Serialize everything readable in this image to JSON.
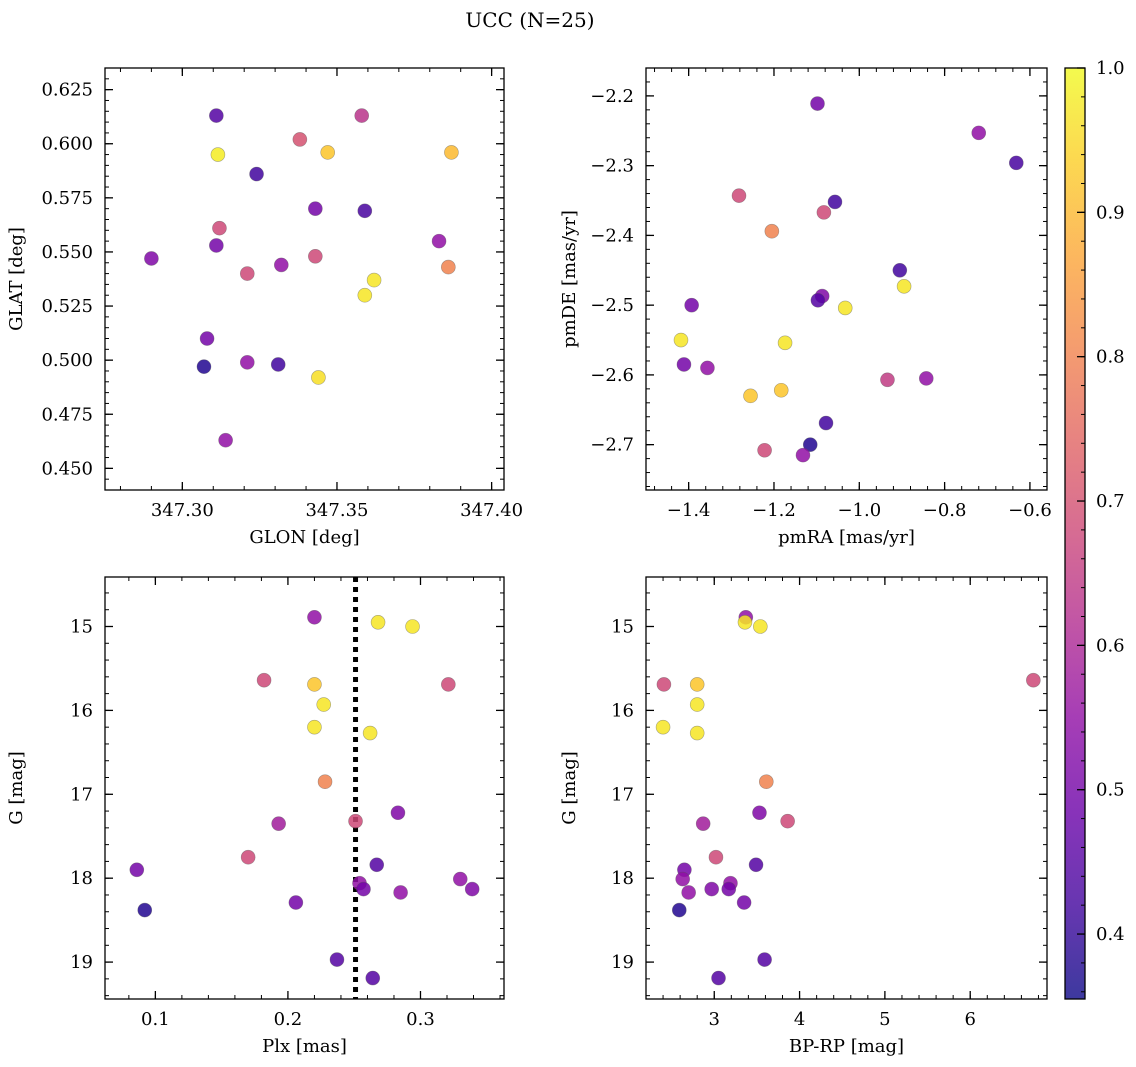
{
  "title": "UCC (N=25)",
  "colorbar": {
    "range": [
      0.355,
      1.0
    ],
    "ticks": [
      0.4,
      0.5,
      0.6,
      0.7,
      0.8,
      0.9,
      1.0
    ],
    "tick_labels": [
      "0.4",
      "0.5",
      "0.6",
      "0.7",
      "0.8",
      "0.9",
      "1.0"
    ]
  },
  "chart_data": [
    {
      "type": "scatter",
      "panel": "top-left",
      "xlabel": "GLON [deg]",
      "ylabel": "GLAT [deg]",
      "xlim": [
        347.275,
        347.404
      ],
      "ylim": [
        0.44,
        0.635
      ],
      "xticks": [
        347.3,
        347.35,
        347.4
      ],
      "xtick_labels": [
        "347.30",
        "347.35",
        "347.40"
      ],
      "yticks": [
        0.45,
        0.475,
        0.5,
        0.525,
        0.55,
        0.575,
        0.6,
        0.625
      ],
      "ytick_labels": [
        "0.450",
        "0.475",
        "0.500",
        "0.525",
        "0.550",
        "0.575",
        "0.600",
        "0.625"
      ],
      "points": [
        {
          "x": 347.311,
          "y": 0.613,
          "c": 0.45
        },
        {
          "x": 347.3115,
          "y": 0.595,
          "c": 0.98
        },
        {
          "x": 347.324,
          "y": 0.586,
          "c": 0.42
        },
        {
          "x": 347.338,
          "y": 0.602,
          "c": 0.7
        },
        {
          "x": 347.347,
          "y": 0.596,
          "c": 0.92
        },
        {
          "x": 347.358,
          "y": 0.613,
          "c": 0.63
        },
        {
          "x": 347.387,
          "y": 0.596,
          "c": 0.9
        },
        {
          "x": 347.343,
          "y": 0.57,
          "c": 0.5
        },
        {
          "x": 347.359,
          "y": 0.569,
          "c": 0.43
        },
        {
          "x": 347.312,
          "y": 0.561,
          "c": 0.68
        },
        {
          "x": 347.311,
          "y": 0.553,
          "c": 0.5
        },
        {
          "x": 347.29,
          "y": 0.547,
          "c": 0.52
        },
        {
          "x": 347.321,
          "y": 0.54,
          "c": 0.68
        },
        {
          "x": 347.332,
          "y": 0.544,
          "c": 0.55
        },
        {
          "x": 347.343,
          "y": 0.548,
          "c": 0.68
        },
        {
          "x": 347.383,
          "y": 0.555,
          "c": 0.55
        },
        {
          "x": 347.386,
          "y": 0.543,
          "c": 0.8
        },
        {
          "x": 347.362,
          "y": 0.537,
          "c": 0.97
        },
        {
          "x": 347.359,
          "y": 0.53,
          "c": 0.97
        },
        {
          "x": 347.308,
          "y": 0.51,
          "c": 0.5
        },
        {
          "x": 347.307,
          "y": 0.497,
          "c": 0.38
        },
        {
          "x": 347.321,
          "y": 0.499,
          "c": 0.55
        },
        {
          "x": 347.331,
          "y": 0.498,
          "c": 0.42
        },
        {
          "x": 347.344,
          "y": 0.492,
          "c": 0.96
        },
        {
          "x": 347.314,
          "y": 0.463,
          "c": 0.55
        }
      ]
    },
    {
      "type": "scatter",
      "panel": "top-right",
      "xlabel": "pmRA [mas/yr]",
      "ylabel": "pmDE [mas/yr]",
      "xlim": [
        -1.5,
        -0.56
      ],
      "ylim": [
        -2.765,
        -2.16
      ],
      "xticks": [
        -1.4,
        -1.2,
        -1.0,
        -0.8,
        -0.6
      ],
      "xtick_labels": [
        "−1.4",
        "−1.2",
        "−1.0",
        "−0.8",
        "−0.6"
      ],
      "yticks": [
        -2.7,
        -2.6,
        -2.5,
        -2.4,
        -2.3,
        -2.2
      ],
      "ytick_labels": [
        "−2.7",
        "−2.6",
        "−2.5",
        "−2.4",
        "−2.3",
        "−2.2"
      ],
      "points": [
        {
          "x": -1.098,
          "y": -2.211,
          "c": 0.5
        },
        {
          "x": -0.72,
          "y": -2.253,
          "c": 0.55
        },
        {
          "x": -0.632,
          "y": -2.296,
          "c": 0.43
        },
        {
          "x": -1.282,
          "y": -2.343,
          "c": 0.68
        },
        {
          "x": -1.057,
          "y": -2.352,
          "c": 0.42
        },
        {
          "x": -1.083,
          "y": -2.367,
          "c": 0.68
        },
        {
          "x": -1.205,
          "y": -2.394,
          "c": 0.8
        },
        {
          "x": -0.905,
          "y": -2.45,
          "c": 0.42
        },
        {
          "x": -0.895,
          "y": -2.473,
          "c": 0.97
        },
        {
          "x": -1.087,
          "y": -2.487,
          "c": 0.52
        },
        {
          "x": -1.097,
          "y": -2.493,
          "c": 0.45
        },
        {
          "x": -1.393,
          "y": -2.5,
          "c": 0.5
        },
        {
          "x": -1.033,
          "y": -2.504,
          "c": 0.97
        },
        {
          "x": -1.418,
          "y": -2.55,
          "c": 0.97
        },
        {
          "x": -1.174,
          "y": -2.554,
          "c": 0.97
        },
        {
          "x": -1.411,
          "y": -2.585,
          "c": 0.5
        },
        {
          "x": -1.356,
          "y": -2.59,
          "c": 0.55
        },
        {
          "x": -0.934,
          "y": -2.607,
          "c": 0.65
        },
        {
          "x": -0.843,
          "y": -2.605,
          "c": 0.55
        },
        {
          "x": -1.183,
          "y": -2.622,
          "c": 0.92
        },
        {
          "x": -1.255,
          "y": -2.63,
          "c": 0.92
        },
        {
          "x": -1.078,
          "y": -2.669,
          "c": 0.42
        },
        {
          "x": -1.115,
          "y": -2.7,
          "c": 0.38
        },
        {
          "x": -1.222,
          "y": -2.708,
          "c": 0.68
        },
        {
          "x": -1.132,
          "y": -2.715,
          "c": 0.55
        }
      ]
    },
    {
      "type": "scatter",
      "panel": "bottom-left",
      "xlabel": "Plx [mas]",
      "ylabel": "G [mag]",
      "xlim": [
        0.062,
        0.363
      ],
      "ylim": [
        19.44,
        14.41
      ],
      "y_inverted": true,
      "vline": {
        "x": 0.251,
        "style": "dotted"
      },
      "xticks": [
        0.1,
        0.2,
        0.3
      ],
      "xtick_labels": [
        "0.1",
        "0.2",
        "0.3"
      ],
      "yticks": [
        15,
        16,
        17,
        18,
        19
      ],
      "ytick_labels": [
        "15",
        "16",
        "17",
        "18",
        "19"
      ],
      "points": [
        {
          "x": 0.22,
          "y": 14.89,
          "c": 0.55
        },
        {
          "x": 0.268,
          "y": 14.95,
          "c": 0.97
        },
        {
          "x": 0.294,
          "y": 15.0,
          "c": 0.97
        },
        {
          "x": 0.182,
          "y": 15.64,
          "c": 0.68
        },
        {
          "x": 0.22,
          "y": 15.69,
          "c": 0.92
        },
        {
          "x": 0.321,
          "y": 15.69,
          "c": 0.68
        },
        {
          "x": 0.227,
          "y": 15.93,
          "c": 0.97
        },
        {
          "x": 0.22,
          "y": 16.2,
          "c": 0.97
        },
        {
          "x": 0.262,
          "y": 16.27,
          "c": 0.97
        },
        {
          "x": 0.228,
          "y": 16.85,
          "c": 0.8
        },
        {
          "x": 0.283,
          "y": 17.22,
          "c": 0.52
        },
        {
          "x": 0.193,
          "y": 17.35,
          "c": 0.58
        },
        {
          "x": 0.251,
          "y": 17.32,
          "c": 0.68
        },
        {
          "x": 0.17,
          "y": 17.75,
          "c": 0.68
        },
        {
          "x": 0.267,
          "y": 17.84,
          "c": 0.45
        },
        {
          "x": 0.086,
          "y": 17.9,
          "c": 0.5
        },
        {
          "x": 0.33,
          "y": 18.01,
          "c": 0.55
        },
        {
          "x": 0.254,
          "y": 18.06,
          "c": 0.55
        },
        {
          "x": 0.257,
          "y": 18.13,
          "c": 0.5
        },
        {
          "x": 0.339,
          "y": 18.13,
          "c": 0.52
        },
        {
          "x": 0.285,
          "y": 18.17,
          "c": 0.55
        },
        {
          "x": 0.206,
          "y": 18.29,
          "c": 0.5
        },
        {
          "x": 0.092,
          "y": 18.38,
          "c": 0.38
        },
        {
          "x": 0.237,
          "y": 18.97,
          "c": 0.45
        },
        {
          "x": 0.264,
          "y": 19.19,
          "c": 0.45
        }
      ]
    },
    {
      "type": "scatter",
      "panel": "bottom-right",
      "xlabel": "BP-RP [mag]",
      "ylabel": "G [mag]",
      "xlim": [
        2.2,
        6.9
      ],
      "ylim": [
        19.44,
        14.41
      ],
      "y_inverted": true,
      "xticks": [
        3,
        4,
        5,
        6
      ],
      "xtick_labels": [
        "3",
        "4",
        "5",
        "6"
      ],
      "yticks": [
        15,
        16,
        17,
        18,
        19
      ],
      "ytick_labels": [
        "15",
        "16",
        "17",
        "18",
        "19"
      ],
      "points": [
        {
          "x": 3.37,
          "y": 14.89,
          "c": 0.55
        },
        {
          "x": 3.36,
          "y": 14.95,
          "c": 0.97
        },
        {
          "x": 3.54,
          "y": 15.0,
          "c": 0.97
        },
        {
          "x": 2.41,
          "y": 15.69,
          "c": 0.68
        },
        {
          "x": 2.8,
          "y": 15.69,
          "c": 0.92
        },
        {
          "x": 6.74,
          "y": 15.64,
          "c": 0.68
        },
        {
          "x": 2.8,
          "y": 15.93,
          "c": 0.97
        },
        {
          "x": 2.4,
          "y": 16.2,
          "c": 0.97
        },
        {
          "x": 2.8,
          "y": 16.27,
          "c": 0.97
        },
        {
          "x": 3.61,
          "y": 16.85,
          "c": 0.8
        },
        {
          "x": 3.53,
          "y": 17.22,
          "c": 0.52
        },
        {
          "x": 2.87,
          "y": 17.35,
          "c": 0.58
        },
        {
          "x": 3.86,
          "y": 17.32,
          "c": 0.68
        },
        {
          "x": 3.02,
          "y": 17.75,
          "c": 0.68
        },
        {
          "x": 3.49,
          "y": 17.84,
          "c": 0.45
        },
        {
          "x": 2.65,
          "y": 17.9,
          "c": 0.5
        },
        {
          "x": 2.63,
          "y": 18.01,
          "c": 0.55
        },
        {
          "x": 3.19,
          "y": 18.06,
          "c": 0.55
        },
        {
          "x": 3.17,
          "y": 18.13,
          "c": 0.5
        },
        {
          "x": 2.97,
          "y": 18.13,
          "c": 0.52
        },
        {
          "x": 2.7,
          "y": 18.17,
          "c": 0.55
        },
        {
          "x": 3.35,
          "y": 18.29,
          "c": 0.5
        },
        {
          "x": 2.59,
          "y": 18.38,
          "c": 0.38
        },
        {
          "x": 3.59,
          "y": 18.97,
          "c": 0.45
        },
        {
          "x": 3.05,
          "y": 19.19,
          "c": 0.45
        }
      ]
    }
  ]
}
